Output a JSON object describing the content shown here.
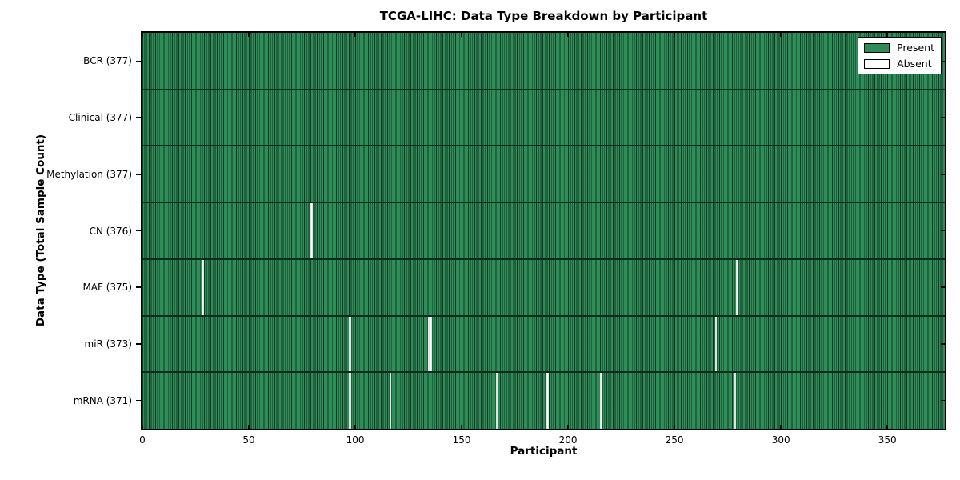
{
  "title": "TCGA-LIHC: Data Type Breakdown by Participant",
  "colors": {
    "present": "#2e8b57",
    "present_edge": "#0d2c1b",
    "absent": "#ffffff",
    "frame": "#000000",
    "background": "#ffffff"
  },
  "chart_data": {
    "type": "heatmap",
    "title": "TCGA-LIHC: Data Type Breakdown by Participant",
    "xlabel": "Participant",
    "ylabel": "Data Type (Total Sample Count)",
    "x_range": [
      0,
      377
    ],
    "n_participants": 377,
    "x_ticks": [
      0,
      50,
      100,
      150,
      200,
      250,
      300,
      350
    ],
    "grid": false,
    "legend_position": "upper right",
    "legend": [
      {
        "label": "Present",
        "color": "#2e8b57"
      },
      {
        "label": "Absent",
        "color": "#ffffff"
      }
    ],
    "rows": [
      {
        "label": "BCR (377)",
        "data_type": "BCR",
        "total": 377,
        "absent_participants": []
      },
      {
        "label": "Clinical (377)",
        "data_type": "Clinical",
        "total": 377,
        "absent_participants": []
      },
      {
        "label": "Methylation (377)",
        "data_type": "Methylation",
        "total": 377,
        "absent_participants": []
      },
      {
        "label": "CN (376)",
        "data_type": "CN",
        "total": 376,
        "absent_participants": [
          79
        ]
      },
      {
        "label": "MAF (375)",
        "data_type": "MAF",
        "total": 375,
        "absent_participants": [
          28,
          279
        ]
      },
      {
        "label": "miR (373)",
        "data_type": "miR",
        "total": 373,
        "absent_participants": [
          97,
          134,
          135,
          269
        ]
      },
      {
        "label": "mRNA (371)",
        "data_type": "mRNA",
        "total": 371,
        "absent_participants": [
          97,
          116,
          166,
          190,
          215,
          278
        ]
      }
    ]
  }
}
